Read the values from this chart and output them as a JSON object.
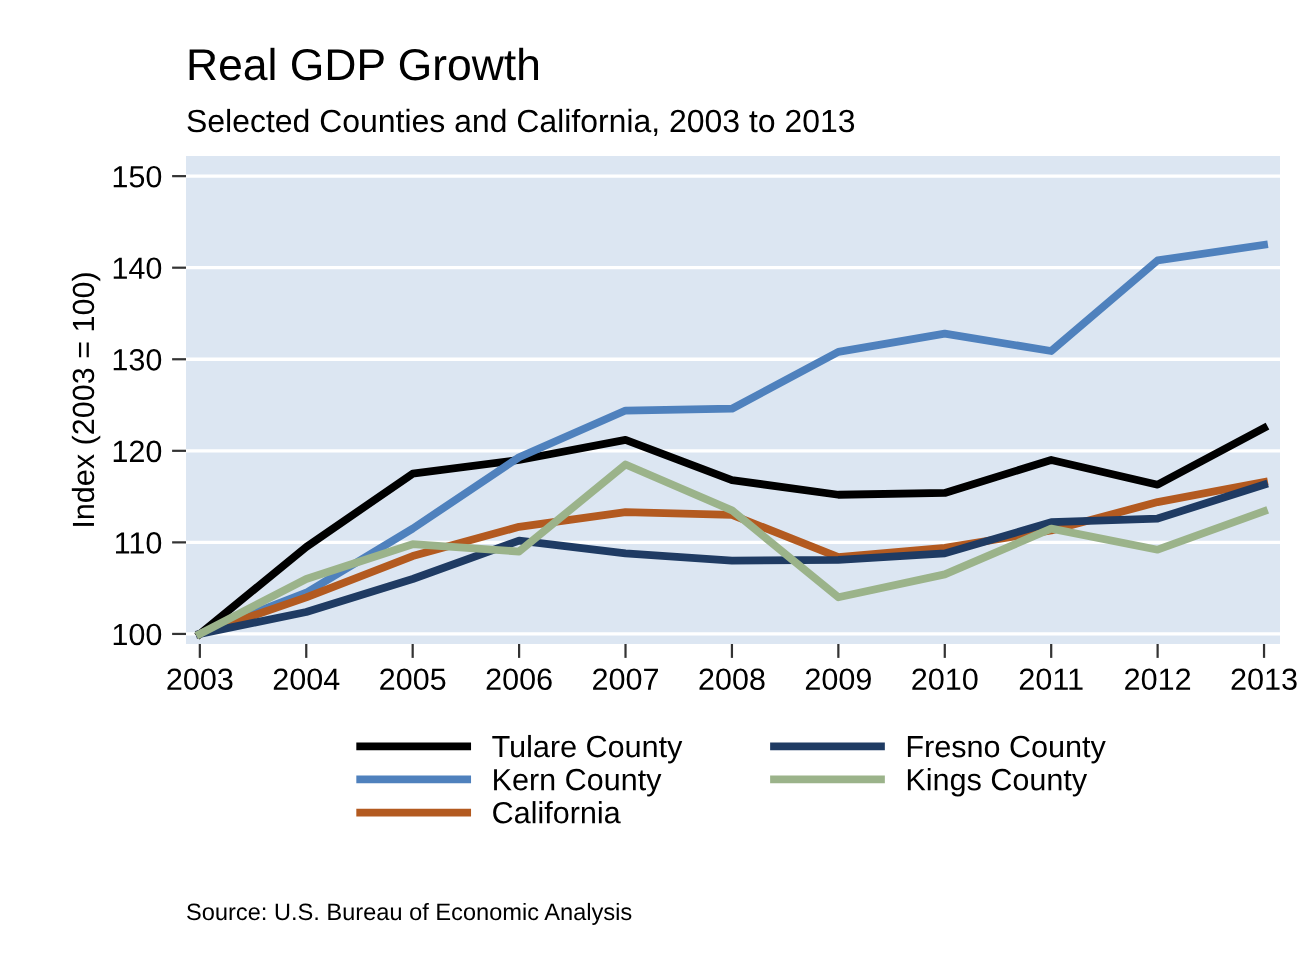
{
  "chart_data": {
    "type": "line",
    "title": "Real GDP Growth",
    "subtitle": "Selected Counties and California, 2003 to 2013",
    "ylabel": "Index (2003 = 100)",
    "x": [
      2003,
      2004,
      2005,
      2006,
      2007,
      2008,
      2009,
      2010,
      2011,
      2012,
      2013
    ],
    "xlim": [
      2002.87,
      2013.15
    ],
    "xticks": [
      2003,
      2004,
      2005,
      2006,
      2007,
      2008,
      2009,
      2010,
      2011,
      2012,
      2013
    ],
    "ylim": [
      98.9,
      152.2
    ],
    "yticks": [
      100,
      110,
      120,
      130,
      140,
      150
    ],
    "grid": "y",
    "legend": "bottom",
    "marker": "none",
    "line_style": "solid",
    "series": [
      {
        "name": "Tulare County",
        "color": "#000000",
        "values": [
          100,
          109.5,
          117.5,
          119,
          121.2,
          116.8,
          115.2,
          115.4,
          119,
          116.3,
          122.5
        ]
      },
      {
        "name": "Kern County",
        "color": "#4f81bd",
        "values": [
          100,
          104.5,
          111.5,
          119.3,
          124.4,
          124.6,
          130.8,
          132.8,
          130.9,
          140.8,
          142.5
        ]
      },
      {
        "name": "California",
        "color": "#b35a20",
        "values": [
          100,
          104,
          108.5,
          111.7,
          113.3,
          113,
          108.4,
          109.4,
          111.3,
          114.4,
          116.6
        ]
      },
      {
        "name": "Fresno County",
        "color": "#1f3b63",
        "values": [
          100,
          102.4,
          106,
          110.2,
          108.8,
          108,
          108.1,
          108.8,
          112.2,
          112.6,
          116.3
        ]
      },
      {
        "name": "Kings County",
        "color": "#9bb38a",
        "values": [
          100,
          106,
          109.8,
          109,
          118.5,
          113.5,
          104,
          106.5,
          111.5,
          109.2,
          113.4
        ]
      }
    ],
    "annotations": [
      "Source: U.S. Bureau of Economic Analysis"
    ]
  }
}
